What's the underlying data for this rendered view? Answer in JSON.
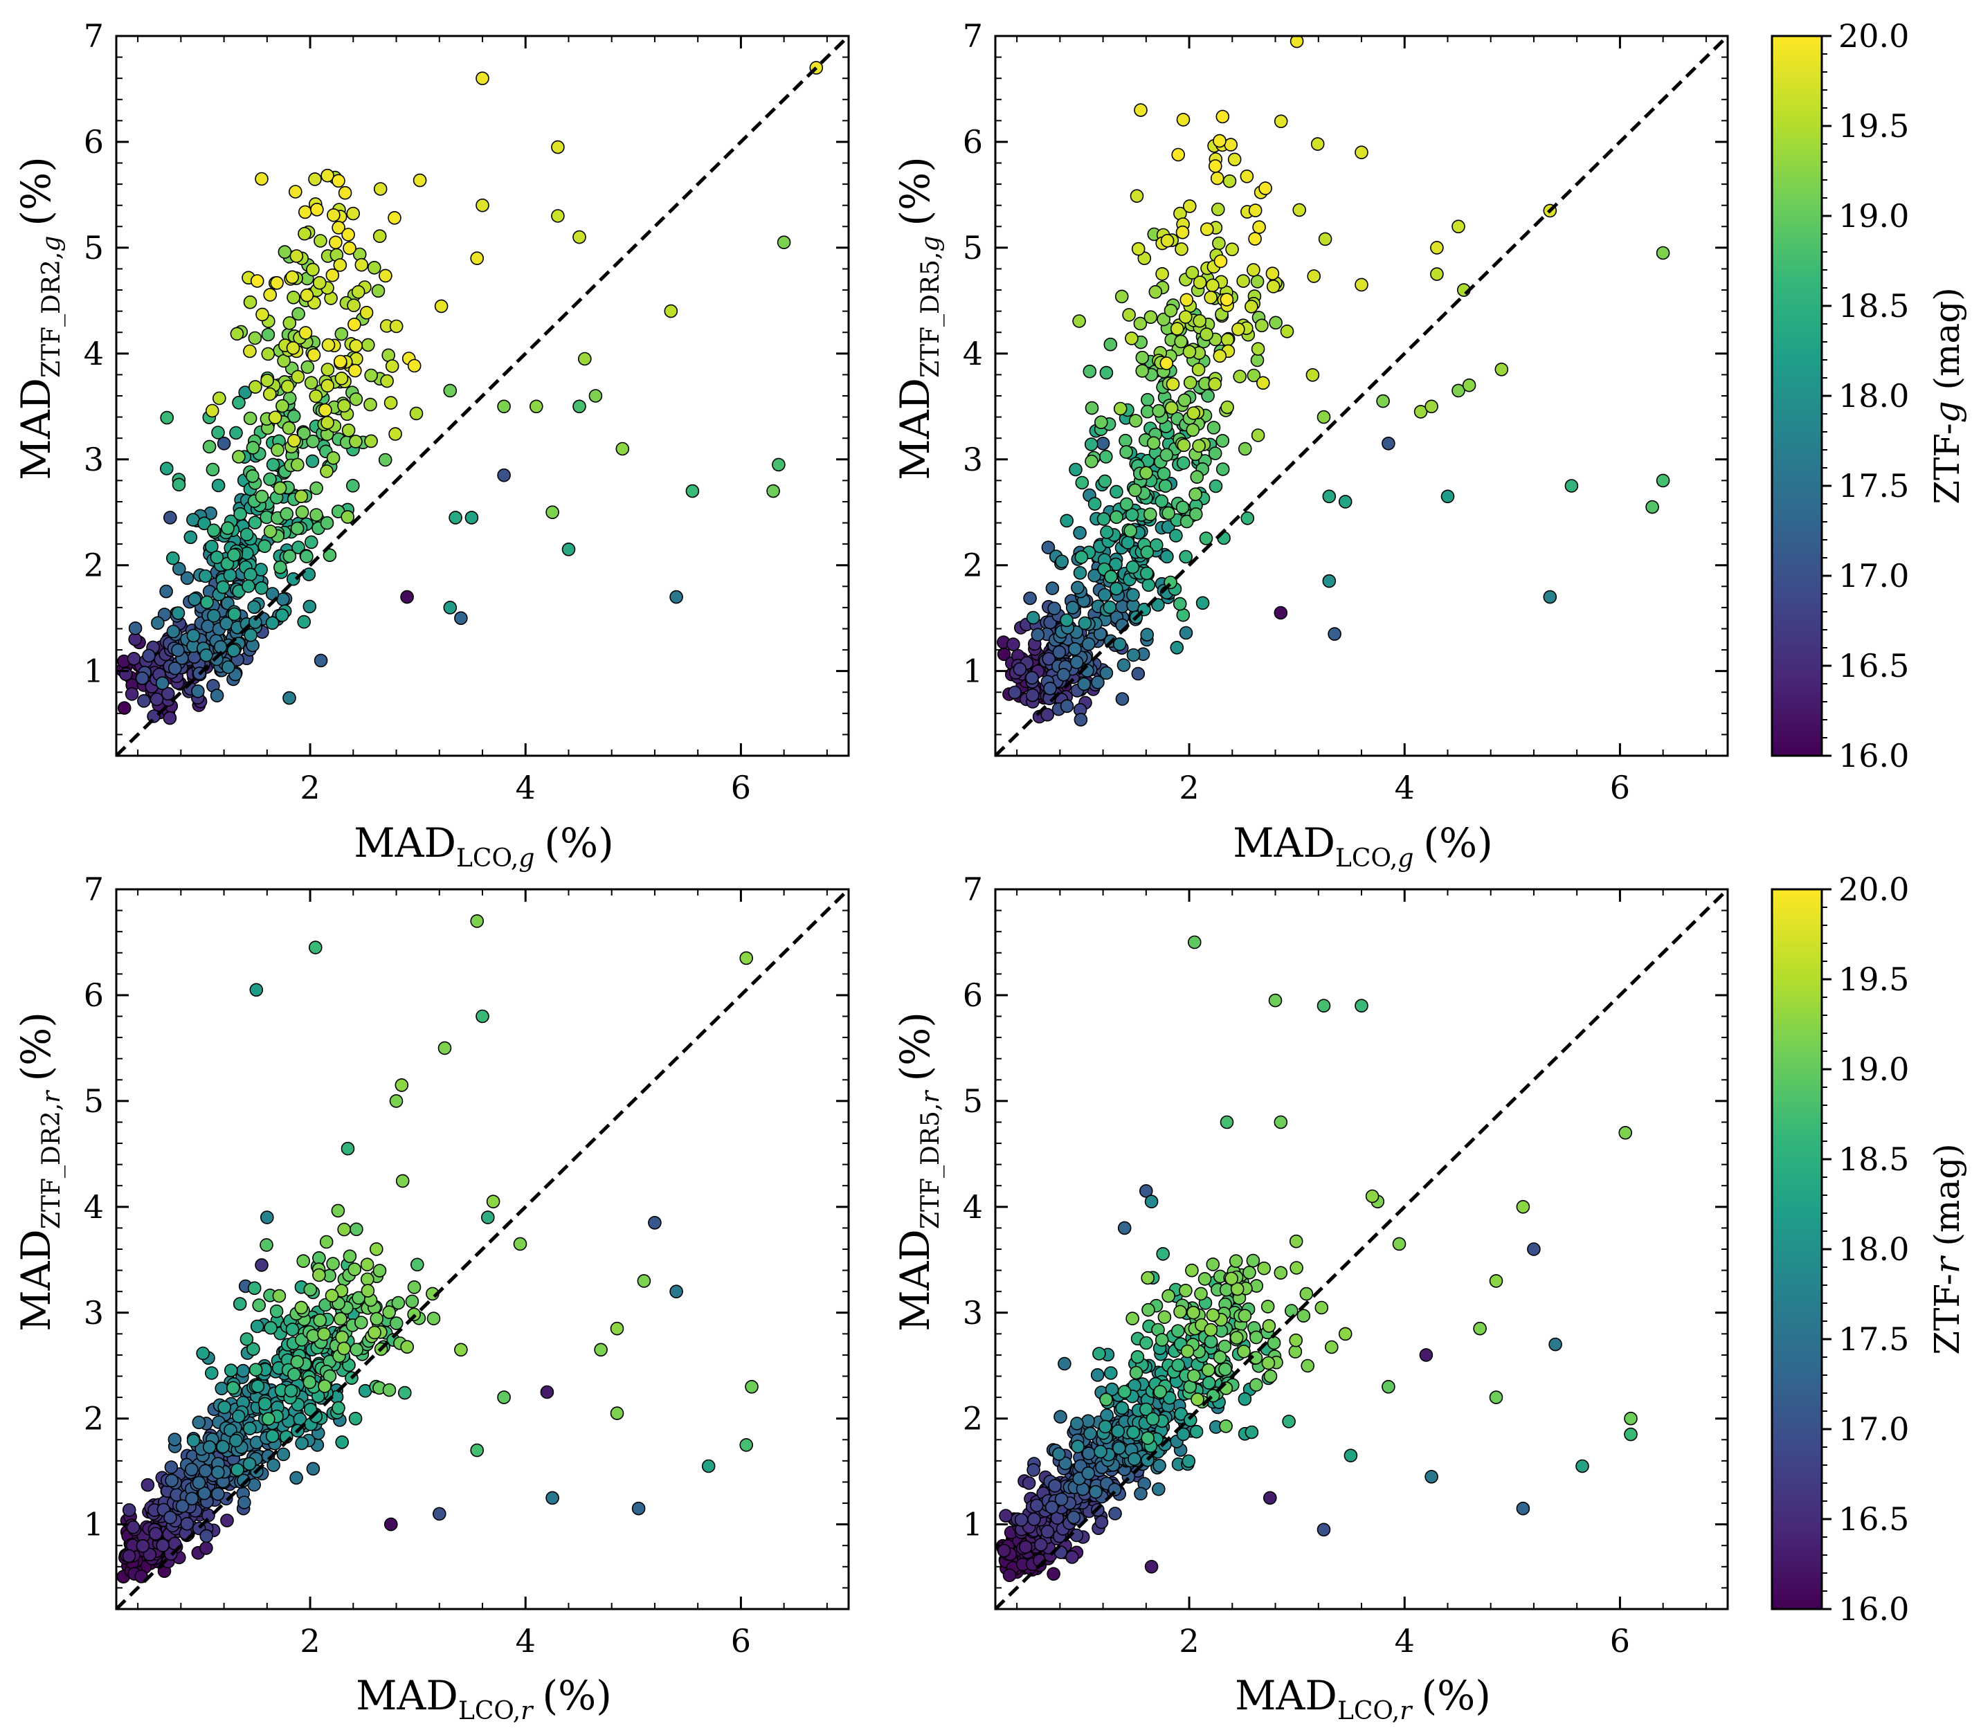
{
  "chart_data": [
    {
      "type": "scatter",
      "panel": "top-left",
      "xlabel_main": "MAD",
      "xlabel_sub": "LCO,",
      "xlabel_band": "g",
      "xlabel_unit": "(%)",
      "ylabel_main": "MAD",
      "ylabel_sub": "ZTF_DR2,",
      "ylabel_band": "g",
      "ylabel_unit": "(%)",
      "xlim": [
        0.2,
        7.0
      ],
      "ylim": [
        0.2,
        7.0
      ],
      "xticks": [
        "2",
        "4",
        "6"
      ],
      "yticks": [
        "1",
        "2",
        "3",
        "4",
        "5",
        "6",
        "7"
      ],
      "color_by": "ZTF-g magnitude",
      "reference_line": "y = x (dashed)",
      "outliers": [
        {
          "x": 6.7,
          "y": 6.7,
          "mag": 19.9
        },
        {
          "x": 6.4,
          "y": 5.05,
          "mag": 19.2
        },
        {
          "x": 5.35,
          "y": 4.4,
          "mag": 19.6
        },
        {
          "x": 4.3,
          "y": 5.95,
          "mag": 19.8
        },
        {
          "x": 4.3,
          "y": 5.3,
          "mag": 19.7
        },
        {
          "x": 4.5,
          "y": 5.1,
          "mag": 19.7
        },
        {
          "x": 4.55,
          "y": 3.95,
          "mag": 19.4
        },
        {
          "x": 4.65,
          "y": 3.6,
          "mag": 19.2
        },
        {
          "x": 4.5,
          "y": 3.5,
          "mag": 18.8
        },
        {
          "x": 4.1,
          "y": 3.5,
          "mag": 19.3
        },
        {
          "x": 3.8,
          "y": 3.5,
          "mag": 19.2
        },
        {
          "x": 4.9,
          "y": 3.1,
          "mag": 19.3
        },
        {
          "x": 3.8,
          "y": 2.85,
          "mag": 17.0
        },
        {
          "x": 4.25,
          "y": 2.5,
          "mag": 19.2
        },
        {
          "x": 4.4,
          "y": 2.15,
          "mag": 18.4
        },
        {
          "x": 5.55,
          "y": 2.7,
          "mag": 18.7
        },
        {
          "x": 6.35,
          "y": 2.95,
          "mag": 18.8
        },
        {
          "x": 6.3,
          "y": 2.7,
          "mag": 19.1
        },
        {
          "x": 5.4,
          "y": 1.7,
          "mag": 17.6
        },
        {
          "x": 3.35,
          "y": 2.45,
          "mag": 18.4
        },
        {
          "x": 3.5,
          "y": 2.45,
          "mag": 18.3
        },
        {
          "x": 3.3,
          "y": 1.6,
          "mag": 18.2
        },
        {
          "x": 3.4,
          "y": 1.5,
          "mag": 17.3
        },
        {
          "x": 2.9,
          "y": 1.7,
          "mag": 16.1
        },
        {
          "x": 3.6,
          "y": 5.4,
          "mag": 19.8
        },
        {
          "x": 3.55,
          "y": 4.9,
          "mag": 19.9
        },
        {
          "x": 3.6,
          "y": 6.6,
          "mag": 19.9
        },
        {
          "x": 3.3,
          "y": 3.65,
          "mag": 19.1
        },
        {
          "x": 1.2,
          "y": 3.15,
          "mag": 17.1
        },
        {
          "x": 0.7,
          "y": 2.45,
          "mag": 17.0
        },
        {
          "x": 2.1,
          "y": 1.1,
          "mag": 17.2
        },
        {
          "x": 1.55,
          "y": 5.65,
          "mag": 19.9
        }
      ]
    },
    {
      "type": "scatter",
      "panel": "top-right",
      "xlabel_main": "MAD",
      "xlabel_sub": "LCO,",
      "xlabel_band": "g",
      "xlabel_unit": "(%)",
      "ylabel_main": "MAD",
      "ylabel_sub": "ZTF_DR5,",
      "ylabel_band": "g",
      "ylabel_unit": "(%)",
      "xlim": [
        0.2,
        7.0
      ],
      "ylim": [
        0.2,
        7.0
      ],
      "xticks": [
        "2",
        "4",
        "6"
      ],
      "yticks": [
        "1",
        "2",
        "3",
        "4",
        "5",
        "6",
        "7"
      ],
      "color_by": "ZTF-g magnitude",
      "reference_line": "y = x (dashed)",
      "outliers": [
        {
          "x": 6.4,
          "y": 4.95,
          "mag": 19.2
        },
        {
          "x": 5.35,
          "y": 5.35,
          "mag": 19.8
        },
        {
          "x": 4.5,
          "y": 5.2,
          "mag": 19.7
        },
        {
          "x": 4.3,
          "y": 5.0,
          "mag": 19.8
        },
        {
          "x": 4.3,
          "y": 4.75,
          "mag": 19.6
        },
        {
          "x": 4.55,
          "y": 4.6,
          "mag": 19.5
        },
        {
          "x": 4.9,
          "y": 3.85,
          "mag": 19.4
        },
        {
          "x": 4.6,
          "y": 3.7,
          "mag": 19.3
        },
        {
          "x": 4.5,
          "y": 3.65,
          "mag": 19.2
        },
        {
          "x": 4.15,
          "y": 3.45,
          "mag": 19.4
        },
        {
          "x": 4.25,
          "y": 3.5,
          "mag": 19.4
        },
        {
          "x": 3.8,
          "y": 3.55,
          "mag": 19.2
        },
        {
          "x": 3.85,
          "y": 3.15,
          "mag": 17.1
        },
        {
          "x": 5.55,
          "y": 2.75,
          "mag": 18.6
        },
        {
          "x": 6.4,
          "y": 2.8,
          "mag": 18.8
        },
        {
          "x": 6.3,
          "y": 2.55,
          "mag": 18.9
        },
        {
          "x": 4.4,
          "y": 2.65,
          "mag": 18.2
        },
        {
          "x": 5.35,
          "y": 1.7,
          "mag": 17.8
        },
        {
          "x": 3.3,
          "y": 2.65,
          "mag": 18.4
        },
        {
          "x": 3.45,
          "y": 2.6,
          "mag": 18.3
        },
        {
          "x": 3.3,
          "y": 1.85,
          "mag": 18.0
        },
        {
          "x": 3.35,
          "y": 1.35,
          "mag": 17.2
        },
        {
          "x": 2.85,
          "y": 1.55,
          "mag": 16.1
        },
        {
          "x": 3.6,
          "y": 5.9,
          "mag": 19.8
        },
        {
          "x": 3.6,
          "y": 4.65,
          "mag": 19.8
        },
        {
          "x": 3.25,
          "y": 3.4,
          "mag": 19.3
        },
        {
          "x": 1.2,
          "y": 3.15,
          "mag": 17.2
        },
        {
          "x": 1.55,
          "y": 6.3,
          "mag": 19.9
        },
        {
          "x": 3.0,
          "y": 6.95,
          "mag": 19.9
        }
      ]
    },
    {
      "type": "scatter",
      "panel": "bottom-left",
      "xlabel_main": "MAD",
      "xlabel_sub": "LCO,",
      "xlabel_band": "r",
      "xlabel_unit": "(%)",
      "ylabel_main": "MAD",
      "ylabel_sub": "ZTF_DR2,",
      "ylabel_band": "r",
      "ylabel_unit": "(%)",
      "xlim": [
        0.2,
        7.0
      ],
      "ylim": [
        0.2,
        7.0
      ],
      "xticks": [
        "2",
        "4",
        "6"
      ],
      "yticks": [
        "1",
        "2",
        "3",
        "4",
        "5",
        "6",
        "7"
      ],
      "color_by": "ZTF-r magnitude",
      "reference_line": "y = x (dashed)",
      "outliers": [
        {
          "x": 6.05,
          "y": 6.35,
          "mag": 19.3
        },
        {
          "x": 3.55,
          "y": 6.7,
          "mag": 19.2
        },
        {
          "x": 2.05,
          "y": 6.45,
          "mag": 18.7
        },
        {
          "x": 1.5,
          "y": 6.05,
          "mag": 18.2
        },
        {
          "x": 3.6,
          "y": 5.8,
          "mag": 18.7
        },
        {
          "x": 3.25,
          "y": 5.5,
          "mag": 19.2
        },
        {
          "x": 2.85,
          "y": 5.15,
          "mag": 19.3
        },
        {
          "x": 2.8,
          "y": 5.0,
          "mag": 19.2
        },
        {
          "x": 2.35,
          "y": 4.55,
          "mag": 18.6
        },
        {
          "x": 3.7,
          "y": 4.05,
          "mag": 19.3
        },
        {
          "x": 3.65,
          "y": 3.9,
          "mag": 18.5
        },
        {
          "x": 3.95,
          "y": 3.65,
          "mag": 19.2
        },
        {
          "x": 5.2,
          "y": 3.85,
          "mag": 17.1
        },
        {
          "x": 5.1,
          "y": 3.3,
          "mag": 19.2
        },
        {
          "x": 5.4,
          "y": 3.2,
          "mag": 17.6
        },
        {
          "x": 1.6,
          "y": 3.9,
          "mag": 17.8
        },
        {
          "x": 1.55,
          "y": 3.45,
          "mag": 16.6
        },
        {
          "x": 1.4,
          "y": 3.25,
          "mag": 17.2
        },
        {
          "x": 4.85,
          "y": 2.85,
          "mag": 19.3
        },
        {
          "x": 4.7,
          "y": 2.65,
          "mag": 19.2
        },
        {
          "x": 6.1,
          "y": 2.3,
          "mag": 19.1
        },
        {
          "x": 6.05,
          "y": 1.75,
          "mag": 18.8
        },
        {
          "x": 4.85,
          "y": 2.05,
          "mag": 19.2
        },
        {
          "x": 5.7,
          "y": 1.55,
          "mag": 18.3
        },
        {
          "x": 4.2,
          "y": 2.25,
          "mag": 16.3
        },
        {
          "x": 3.8,
          "y": 2.2,
          "mag": 19.0
        },
        {
          "x": 4.25,
          "y": 1.25,
          "mag": 17.6
        },
        {
          "x": 5.05,
          "y": 1.15,
          "mag": 17.3
        },
        {
          "x": 3.4,
          "y": 2.65,
          "mag": 19.3
        },
        {
          "x": 3.55,
          "y": 1.7,
          "mag": 18.8
        },
        {
          "x": 3.2,
          "y": 1.1,
          "mag": 17.0
        },
        {
          "x": 2.75,
          "y": 1.0,
          "mag": 16.1
        },
        {
          "x": 0.95,
          "y": 1.75,
          "mag": 17.3
        }
      ]
    },
    {
      "type": "scatter",
      "panel": "bottom-right",
      "xlabel_main": "MAD",
      "xlabel_sub": "LCO,",
      "xlabel_band": "r",
      "xlabel_unit": "(%)",
      "ylabel_main": "MAD",
      "ylabel_sub": "ZTF_DR5,",
      "ylabel_band": "r",
      "ylabel_unit": "(%)",
      "xlim": [
        0.2,
        7.0
      ],
      "ylim": [
        0.2,
        7.0
      ],
      "xticks": [
        "2",
        "4",
        "6"
      ],
      "yticks": [
        "1",
        "2",
        "3",
        "4",
        "5",
        "6",
        "7"
      ],
      "color_by": "ZTF-r magnitude",
      "reference_line": "y = x (dashed)",
      "outliers": [
        {
          "x": 2.05,
          "y": 6.5,
          "mag": 19.0
        },
        {
          "x": 2.8,
          "y": 5.95,
          "mag": 19.1
        },
        {
          "x": 3.25,
          "y": 5.9,
          "mag": 18.8
        },
        {
          "x": 3.6,
          "y": 5.9,
          "mag": 18.7
        },
        {
          "x": 2.35,
          "y": 4.8,
          "mag": 18.8
        },
        {
          "x": 2.85,
          "y": 4.8,
          "mag": 19.1
        },
        {
          "x": 6.05,
          "y": 4.7,
          "mag": 19.2
        },
        {
          "x": 1.6,
          "y": 4.15,
          "mag": 17.1
        },
        {
          "x": 1.65,
          "y": 4.05,
          "mag": 17.9
        },
        {
          "x": 1.4,
          "y": 3.8,
          "mag": 17.3
        },
        {
          "x": 3.7,
          "y": 4.1,
          "mag": 19.3
        },
        {
          "x": 3.75,
          "y": 4.05,
          "mag": 19.2
        },
        {
          "x": 5.1,
          "y": 4.0,
          "mag": 19.3
        },
        {
          "x": 3.95,
          "y": 3.65,
          "mag": 19.2
        },
        {
          "x": 5.2,
          "y": 3.6,
          "mag": 17.0
        },
        {
          "x": 4.85,
          "y": 3.3,
          "mag": 19.3
        },
        {
          "x": 5.4,
          "y": 2.7,
          "mag": 17.6
        },
        {
          "x": 4.7,
          "y": 2.85,
          "mag": 19.2
        },
        {
          "x": 4.85,
          "y": 2.2,
          "mag": 19.1
        },
        {
          "x": 6.1,
          "y": 2.0,
          "mag": 19.1
        },
        {
          "x": 6.1,
          "y": 1.85,
          "mag": 18.7
        },
        {
          "x": 5.65,
          "y": 1.55,
          "mag": 18.3
        },
        {
          "x": 4.2,
          "y": 2.6,
          "mag": 16.3
        },
        {
          "x": 3.85,
          "y": 2.3,
          "mag": 19.0
        },
        {
          "x": 4.25,
          "y": 1.45,
          "mag": 17.6
        },
        {
          "x": 5.1,
          "y": 1.15,
          "mag": 17.3
        },
        {
          "x": 3.45,
          "y": 2.8,
          "mag": 19.3
        },
        {
          "x": 3.5,
          "y": 1.65,
          "mag": 18.3
        },
        {
          "x": 3.25,
          "y": 0.95,
          "mag": 17.0
        },
        {
          "x": 2.75,
          "y": 1.25,
          "mag": 16.3
        },
        {
          "x": 1.65,
          "y": 0.6,
          "mag": 16.3
        }
      ]
    }
  ],
  "colorbars": [
    {
      "label_prefix": "ZTF-",
      "label_band": "g",
      "label_suffix": " (mag)",
      "ticks": [
        "16.0",
        "16.5",
        "17.0",
        "17.5",
        "18.0",
        "18.5",
        "19.0",
        "19.5",
        "20.0"
      ],
      "range": [
        16.0,
        20.0
      ],
      "colormap": "viridis"
    },
    {
      "label_prefix": "ZTF-",
      "label_band": "r",
      "label_suffix": " (mag)",
      "ticks": [
        "16.0",
        "16.5",
        "17.0",
        "17.5",
        "18.0",
        "18.5",
        "19.0",
        "19.5",
        "20.0"
      ],
      "range": [
        16.0,
        20.0
      ],
      "colormap": "viridis"
    }
  ],
  "colors": {
    "viridis_stops": [
      "#440154",
      "#482878",
      "#3e4989",
      "#31688e",
      "#26828e",
      "#1f9e89",
      "#35b779",
      "#6ece58",
      "#b5de2b",
      "#fde725"
    ],
    "dashed_line": "#000000",
    "marker_edge": "#000000"
  }
}
